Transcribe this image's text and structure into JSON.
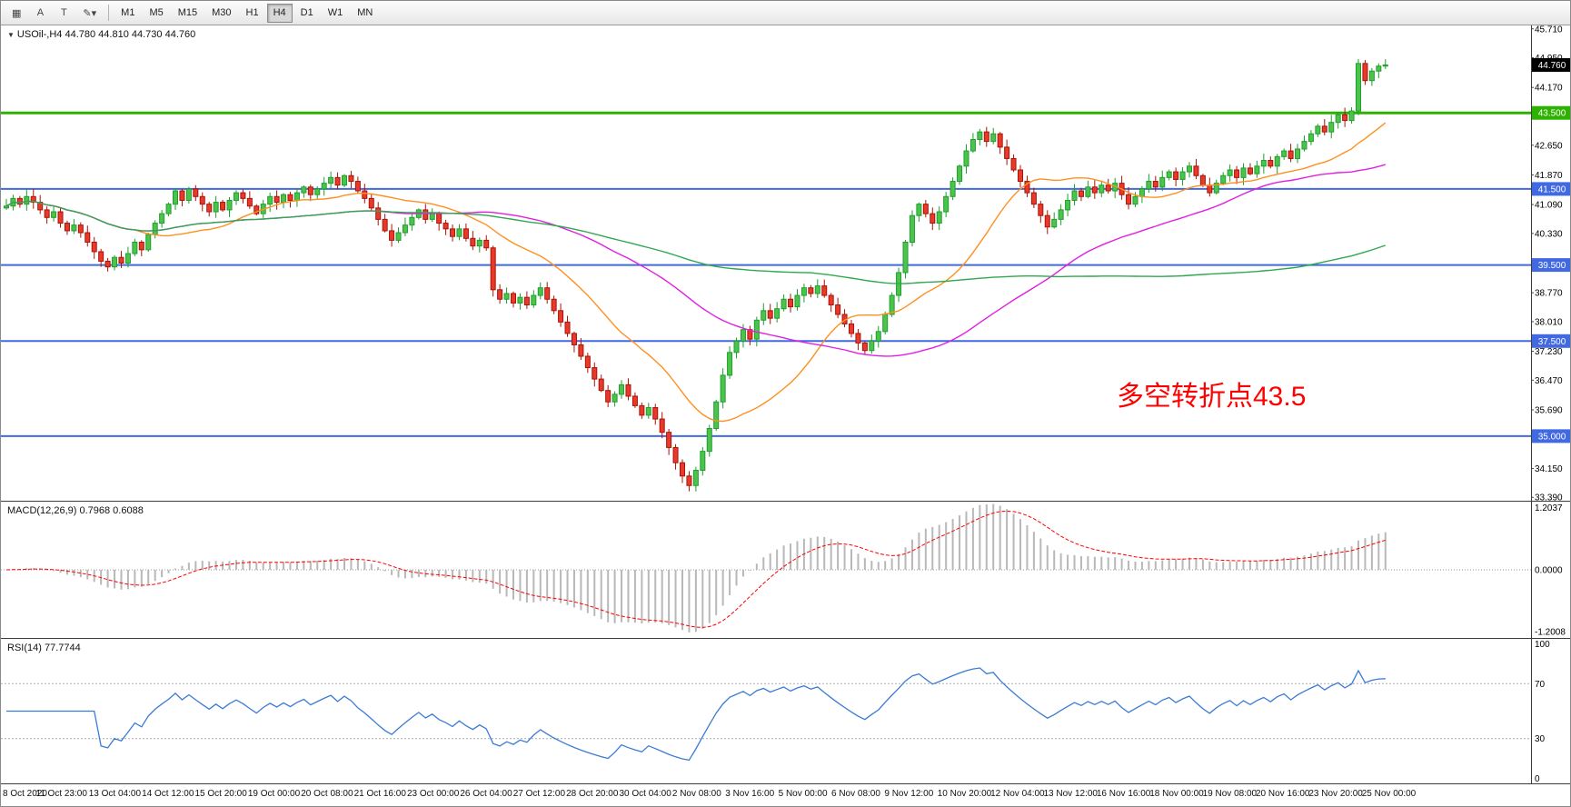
{
  "toolbar": {
    "tools": [
      {
        "name": "grid-icon",
        "glyph": "▦"
      },
      {
        "name": "text-a-tool",
        "glyph": "A"
      },
      {
        "name": "text-label-tool",
        "glyph": "T"
      },
      {
        "name": "draw-tools-dropdown",
        "glyph": "✎▾"
      }
    ],
    "timeframes": [
      "M1",
      "M5",
      "M15",
      "M30",
      "H1",
      "H4",
      "D1",
      "W1",
      "MN"
    ],
    "active_timeframe": "H4"
  },
  "chart": {
    "menu_glyph": "▼",
    "symbol_line": "USOil-,H4 44.780 44.810 44.730 44.760",
    "current_price": "44.760",
    "annotation": {
      "text": "多空转折点43.5",
      "color": "#ff0000"
    }
  },
  "macd": {
    "label": "MACD(12,26,9) 0.7968 0.6088",
    "fast": 12,
    "slow": 26,
    "signal": 9,
    "axis": [
      "1.2037",
      "0.0000",
      "-1.2008"
    ]
  },
  "rsi": {
    "label": "RSI(14) 77.7744",
    "period": 14,
    "levels": [
      70,
      30
    ],
    "axis": [
      "100",
      "70",
      "30",
      "0"
    ]
  },
  "time_axis": [
    "8 Oct 2020",
    "11 Oct 23:00",
    "13 Oct 04:00",
    "14 Oct 12:00",
    "15 Oct 20:00",
    "19 Oct 00:00",
    "20 Oct 08:00",
    "21 Oct 16:00",
    "23 Oct 00:00",
    "26 Oct 04:00",
    "27 Oct 12:00",
    "28 Oct 20:00",
    "30 Oct 04:00",
    "2 Nov 08:00",
    "3 Nov 16:00",
    "5 Nov 00:00",
    "6 Nov 08:00",
    "9 Nov 12:00",
    "10 Nov 20:00",
    "12 Nov 04:00",
    "13 Nov 12:00",
    "16 Nov 16:00",
    "18 Nov 00:00",
    "19 Nov 08:00",
    "20 Nov 16:00",
    "23 Nov 20:00",
    "25 Nov 00:00"
  ],
  "colors": {
    "bull_stroke": "#1e9e2e",
    "bull_fill": "#4cc44c",
    "bear_stroke": "#a81408",
    "bear_fill": "#e8392a",
    "current_tag_bg": "#000000",
    "tag_text": "#ffffff",
    "macd_hist": "#b8b8b8",
    "macd_signal": "#ff0000",
    "rsi_line": "#3b7bd4",
    "level_dash": "#aaaaaa"
  },
  "chart_data": [
    {
      "type": "candlestick",
      "title": "USOil- H4",
      "ylim": [
        33.3,
        45.8
      ],
      "y_ticks": [
        "45.710",
        "44.950",
        "44.170",
        "43.410",
        "42.650",
        "41.870",
        "41.090",
        "40.330",
        "39.560",
        "38.770",
        "38.010",
        "37.230",
        "36.470",
        "35.690",
        "34.930",
        "34.150",
        "33.390"
      ],
      "first_open": 41.0,
      "closes": [
        41.05,
        41.25,
        41.1,
        41.3,
        41.15,
        40.95,
        40.75,
        40.9,
        40.6,
        40.4,
        40.55,
        40.35,
        40.1,
        39.85,
        39.6,
        39.45,
        39.7,
        39.55,
        39.8,
        40.1,
        39.9,
        40.3,
        40.6,
        40.85,
        41.1,
        41.45,
        41.2,
        41.5,
        41.3,
        41.1,
        40.9,
        41.15,
        40.95,
        41.2,
        41.4,
        41.25,
        41.05,
        40.85,
        41.1,
        41.3,
        41.15,
        41.35,
        41.2,
        41.4,
        41.55,
        41.35,
        41.5,
        41.65,
        41.8,
        41.6,
        41.85,
        41.7,
        41.45,
        41.25,
        41.0,
        40.7,
        40.4,
        40.15,
        40.35,
        40.55,
        40.75,
        40.95,
        40.7,
        40.85,
        40.6,
        40.45,
        40.25,
        40.45,
        40.2,
        40.0,
        40.15,
        39.95,
        38.85,
        38.6,
        38.75,
        38.5,
        38.65,
        38.45,
        38.7,
        38.9,
        38.6,
        38.3,
        38.0,
        37.7,
        37.4,
        37.1,
        36.8,
        36.5,
        36.2,
        35.9,
        36.1,
        36.35,
        36.05,
        35.8,
        35.55,
        35.75,
        35.45,
        35.1,
        34.7,
        34.3,
        33.95,
        33.7,
        34.1,
        34.6,
        35.2,
        35.9,
        36.6,
        37.2,
        37.5,
        37.8,
        37.55,
        38.05,
        38.3,
        38.1,
        38.35,
        38.6,
        38.4,
        38.7,
        38.9,
        38.75,
        38.95,
        38.7,
        38.45,
        38.2,
        37.95,
        37.7,
        37.45,
        37.25,
        37.5,
        37.75,
        38.2,
        38.7,
        39.3,
        40.1,
        40.8,
        41.1,
        40.85,
        40.6,
        40.9,
        41.3,
        41.7,
        42.1,
        42.5,
        42.8,
        43.0,
        42.75,
        42.95,
        42.6,
        42.3,
        42.0,
        41.7,
        41.4,
        41.1,
        40.8,
        40.5,
        40.7,
        40.95,
        41.2,
        41.45,
        41.3,
        41.55,
        41.4,
        41.6,
        41.45,
        41.65,
        41.35,
        41.1,
        41.3,
        41.5,
        41.7,
        41.55,
        41.8,
        41.95,
        41.75,
        41.95,
        42.1,
        41.85,
        41.6,
        41.4,
        41.65,
        41.85,
        42.0,
        41.8,
        42.05,
        41.9,
        42.1,
        42.25,
        42.1,
        42.35,
        42.5,
        42.3,
        42.55,
        42.75,
        42.95,
        43.15,
        43.0,
        43.25,
        43.45,
        43.3,
        43.55,
        44.8,
        44.35,
        44.6,
        44.73,
        44.76
      ],
      "hlines": [
        {
          "price": 43.5,
          "label": "43.500",
          "color": "#2db200",
          "width": 3
        },
        {
          "price": 41.5,
          "label": "41.500",
          "color": "#4169e1",
          "width": 2
        },
        {
          "price": 39.5,
          "label": "39.500",
          "color": "#4169e1",
          "width": 2
        },
        {
          "price": 37.5,
          "label": "37.500",
          "color": "#4169e1",
          "width": 2
        },
        {
          "price": 35.0,
          "label": "35.000",
          "color": "#4169e1",
          "width": 2
        }
      ],
      "moving_averages": [
        {
          "period": 20,
          "color": "#ff9020"
        },
        {
          "period": 55,
          "color": "#e020e0"
        },
        {
          "period": 120,
          "color": "#2fa84f"
        }
      ]
    },
    {
      "type": "bar",
      "name": "MACD(12,26,9)",
      "current_values": [
        "0.7968",
        "0.6088"
      ],
      "derived_from": "chart_data[0].closes",
      "ylim": [
        -1.32,
        1.32
      ],
      "y_ticks": [
        "1.2037",
        "0.0000",
        "-1.2008"
      ]
    },
    {
      "type": "line",
      "name": "RSI(14)",
      "current_value": "77.7744",
      "derived_from": "chart_data[0].closes",
      "ylim": [
        0,
        100
      ],
      "levels": [
        70,
        30
      ],
      "y_ticks": [
        "100",
        "70",
        "30",
        "0"
      ]
    }
  ]
}
